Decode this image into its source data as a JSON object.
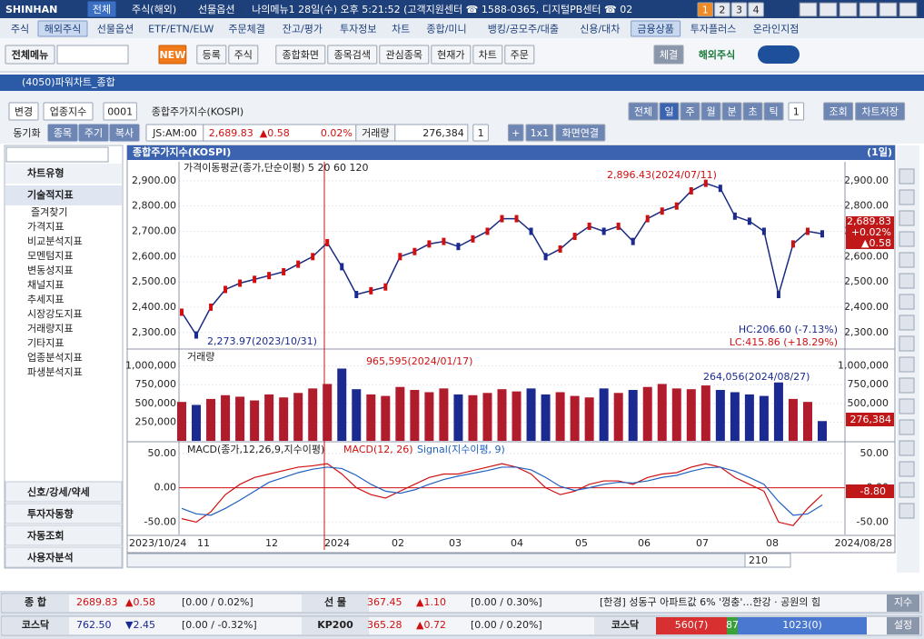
{
  "top_bar": {
    "logo": "SHINHAN",
    "tabs": [
      "전체",
      "주식(해외)",
      "선물옵션"
    ],
    "info": "나의메뉴1 28일(수) 오후 5:21:52 (고객지원센터 ☎ 1588-0365, 디지털PB센터 ☎ 02",
    "pages": [
      "1",
      "2",
      "3",
      "4"
    ]
  },
  "menu": [
    "주식",
    "해외주식",
    "선물옵션",
    "ETF/ETN/ELW",
    "주문체결",
    "잔고/평가",
    "투자정보",
    "차트",
    "종합/미니",
    "뱅킹/공모주/대출",
    "신용/대차",
    "금융상품",
    "투자플러스",
    "온라인지점"
  ],
  "toolbar": {
    "left": [
      "전체메뉴"
    ],
    "new": "NEW",
    "buttons": [
      "등록",
      "주식",
      "종합화면",
      "종목검색",
      "관심종목",
      "현재가",
      "차트",
      "주문"
    ],
    "right": [
      "체결",
      "해외주식"
    ]
  },
  "window_title": "(4050)파워차트_종합",
  "chart_toolbar": {
    "left": [
      "변경",
      "업종지수",
      "0001",
      "종합주가지수(KOSPI)"
    ],
    "periods": [
      "전체",
      "일",
      "주",
      "월",
      "분",
      "초",
      "틱"
    ],
    "count": "1",
    "buttons": [
      "조회",
      "차트저장"
    ]
  },
  "quote_bar": {
    "buttons": [
      "동기화",
      "종목",
      "주기",
      "복사"
    ],
    "time": "JS:AM:00",
    "price": "2,689.83",
    "change": "▲0.58",
    "rate": "0.02%",
    "volume_label": "거래량",
    "volume": "276,384",
    "count": "1",
    "extra": [
      "+",
      "1x1",
      "화면연결"
    ]
  },
  "side_panel": {
    "sections": [
      "차트유형",
      "기술적지표"
    ],
    "items": [
      "즐겨찾기",
      "가격지표",
      "비교분석지표",
      "모멘텀지표",
      "변동성지표",
      "채널지표",
      "추세지표",
      "시장강도지표",
      "거래량지표",
      "기타지표",
      "업종분석지표",
      "파생분석지표"
    ],
    "bottom": [
      "신호/강세/약세",
      "투자자동향",
      "자동조회",
      "사용자분석"
    ]
  },
  "chart": {
    "type": "line",
    "title": "종합주가지수(KOSPI)",
    "period": "(1일)",
    "price": {
      "legend": "가격이동평균(종가,단순이평) 5 20 60 120",
      "ylim": [
        2238,
        2975
      ],
      "yticks": [
        {
          "value": 2900,
          "label": "2,900.00"
        },
        {
          "value": 2800,
          "label": "2,800.00"
        },
        {
          "value": 2700,
          "label": "2,700.00"
        },
        {
          "value": 2600,
          "label": "2,600.00"
        },
        {
          "value": 2500,
          "label": "2,500.00"
        },
        {
          "value": 2400,
          "label": "2,400.00"
        },
        {
          "value": 2300,
          "label": "2,300.00"
        }
      ],
      "values": [
        2380,
        2290,
        2400,
        2470,
        2495,
        2510,
        2525,
        2540,
        2570,
        2600,
        2655,
        2560,
        2450,
        2465,
        2480,
        2600,
        2620,
        2650,
        2660,
        2640,
        2670,
        2700,
        2750,
        2750,
        2700,
        2600,
        2630,
        2680,
        2720,
        2700,
        2720,
        2660,
        2750,
        2780,
        2800,
        2860,
        2890,
        2870,
        2760,
        2740,
        2700,
        2450,
        2650,
        2700,
        2690
      ],
      "high_note": "2,896.43(2024/07/11)",
      "low_note": "2,273.97(2023/10/31)",
      "hc": "HC:206.60 (-7.13%)",
      "lc": "LC:415.86 (+18.29%)",
      "last": [
        "2,689.83",
        "+0.02%",
        "▲0.58"
      ]
    },
    "volume": {
      "legend": "거래량",
      "ylim": [
        0,
        1190000
      ],
      "yticks": [
        {
          "value": 1000000,
          "label": "1,000,000"
        },
        {
          "value": 750000,
          "label": "750,000"
        },
        {
          "value": 500000,
          "label": "500,000"
        },
        {
          "value": 250000,
          "label": "250,000"
        }
      ],
      "values": [
        520000,
        480000,
        560000,
        610000,
        590000,
        540000,
        620000,
        580000,
        640000,
        700000,
        760000,
        965595,
        690000,
        620000,
        600000,
        720000,
        680000,
        650000,
        700000,
        620000,
        610000,
        640000,
        690000,
        660000,
        700000,
        620000,
        650000,
        600000,
        580000,
        700000,
        640000,
        680000,
        720000,
        760000,
        700000,
        690000,
        740000,
        680000,
        650000,
        620000,
        600000,
        780000,
        560000,
        520000,
        264056
      ],
      "max_note": "965,595(2024/01/17)",
      "last_note": "264,056(2024/08/27)",
      "last": "276,384"
    },
    "macd": {
      "legend": "MACD(종가,12,26,9,지수이평)",
      "names": [
        "MACD(12, 26)",
        "Signal(지수이평, 9)"
      ],
      "ylim": [
        -68,
        63
      ],
      "yticks": [
        {
          "value": 50,
          "label": "50.00"
        },
        {
          "value": 0,
          "label": "0.00"
        },
        {
          "value": -50,
          "label": "-50.00"
        }
      ],
      "series": [
        {
          "name": "MACD(12, 26)",
          "color": "#d01010",
          "values": [
            -45,
            -50,
            -35,
            -10,
            5,
            15,
            20,
            25,
            30,
            32,
            35,
            20,
            0,
            -10,
            -15,
            -5,
            5,
            15,
            20,
            20,
            25,
            30,
            35,
            30,
            20,
            0,
            -10,
            -5,
            5,
            10,
            10,
            5,
            15,
            20,
            22,
            30,
            35,
            30,
            15,
            5,
            -5,
            -50,
            -55,
            -30,
            -10
          ]
        },
        {
          "name": "Signal(지수이평, 9)",
          "color": "#2060c0",
          "values": [
            -30,
            -38,
            -40,
            -30,
            -18,
            -5,
            8,
            15,
            22,
            27,
            30,
            28,
            18,
            5,
            -5,
            -8,
            -3,
            5,
            12,
            17,
            21,
            25,
            30,
            30,
            26,
            15,
            2,
            -4,
            0,
            5,
            8,
            7,
            10,
            15,
            18,
            24,
            29,
            30,
            24,
            15,
            5,
            -20,
            -40,
            -38,
            -25
          ]
        }
      ],
      "last": "-8.80"
    },
    "dates": [
      "2023/10/24",
      "11",
      "12",
      "2024",
      "02",
      "03",
      "04",
      "05",
      "06",
      "07",
      "08",
      "2024/08/28"
    ],
    "scroll_count": "210"
  },
  "status": {
    "rows": [
      [
        "종 합",
        "2689.83",
        "▲0.58",
        "[0.00 / 0.02%]",
        "선 물",
        "367.45",
        "▲1.10",
        "[0.00 / 0.30%]",
        "[한경] 성동구 아파트값 6% '껑충'…한강 · 공원의 힘",
        "지수"
      ],
      [
        "코스닥",
        "762.50",
        "▼2.45",
        "[0.00 / -0.32%]",
        "KP200",
        "365.28",
        "▲0.72",
        "[0.00 / 0.20%]",
        "코스닥",
        "560(7)",
        "87",
        "1023(0)",
        "설정"
      ]
    ]
  }
}
